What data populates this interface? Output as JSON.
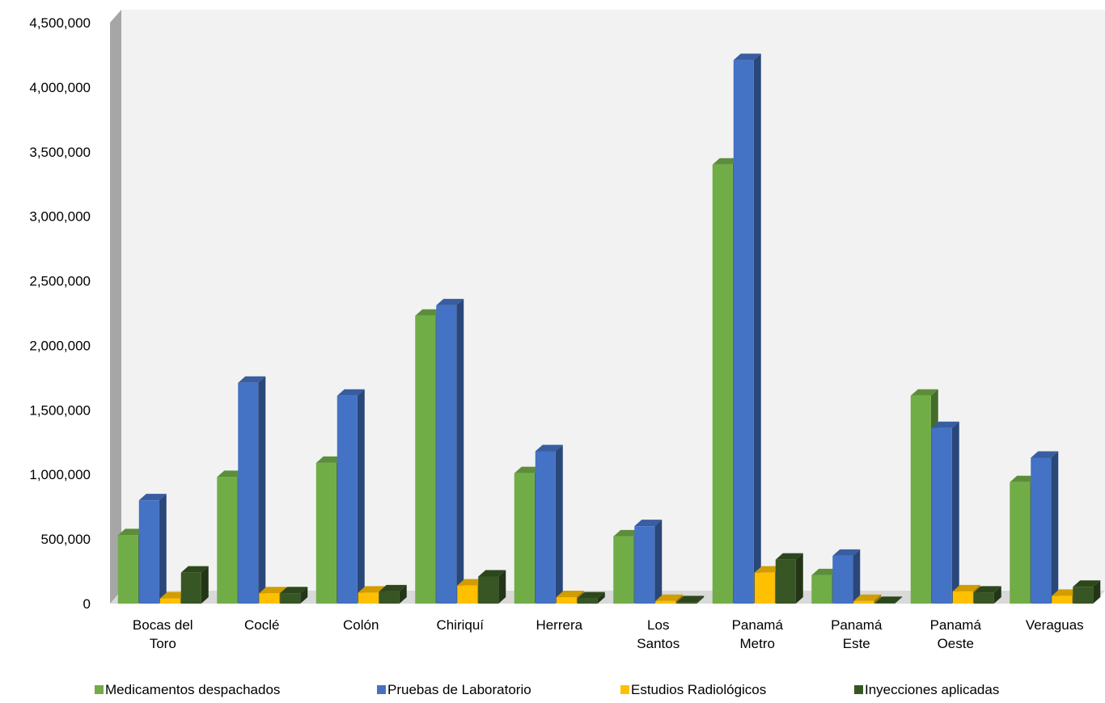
{
  "chart_data": {
    "type": "bar",
    "title": "",
    "xlabel": "",
    "ylabel": "",
    "ylim": [
      0,
      4500000
    ],
    "yticks": [
      "0",
      "500,000",
      "1,000,000",
      "1,500,000",
      "2,000,000",
      "2,500,000",
      "3,000,000",
      "3,500,000",
      "4,000,000",
      "4,500,000"
    ],
    "ytick_values": [
      0,
      500000,
      1000000,
      1500000,
      2000000,
      2500000,
      3000000,
      3500000,
      4000000,
      4500000
    ],
    "categories": [
      [
        "Bocas del",
        "Toro"
      ],
      [
        "Coclé"
      ],
      [
        "Colón"
      ],
      [
        "Chiriquí"
      ],
      [
        "Herrera"
      ],
      [
        "Los",
        "Santos"
      ],
      [
        "Panamá",
        "Metro"
      ],
      [
        "Panamá",
        "Este"
      ],
      [
        "Panamá",
        "Oeste"
      ],
      [
        "Veraguas"
      ]
    ],
    "series": [
      {
        "name": "Medicamentos despachados",
        "color": "#70ad47",
        "values": [
          530000,
          980000,
          1090000,
          2230000,
          1010000,
          520000,
          3400000,
          220000,
          1610000,
          940000
        ]
      },
      {
        "name": "Pruebas de Laboratorio",
        "color": "#4472c4",
        "values": [
          800000,
          1710000,
          1610000,
          2310000,
          1180000,
          600000,
          4210000,
          370000,
          1360000,
          1130000
        ]
      },
      {
        "name": "Estudios Radiológicos",
        "color": "#ffc000",
        "values": [
          40000,
          80000,
          85000,
          140000,
          50000,
          20000,
          240000,
          20000,
          95000,
          60000
        ]
      },
      {
        "name": "Inyecciones aplicadas",
        "color": "#375623",
        "values": [
          240000,
          80000,
          95000,
          210000,
          40000,
          10000,
          340000,
          5000,
          85000,
          130000
        ]
      }
    ],
    "grid": false,
    "legend_position": "bottom",
    "style": "3d-clustered-column"
  }
}
